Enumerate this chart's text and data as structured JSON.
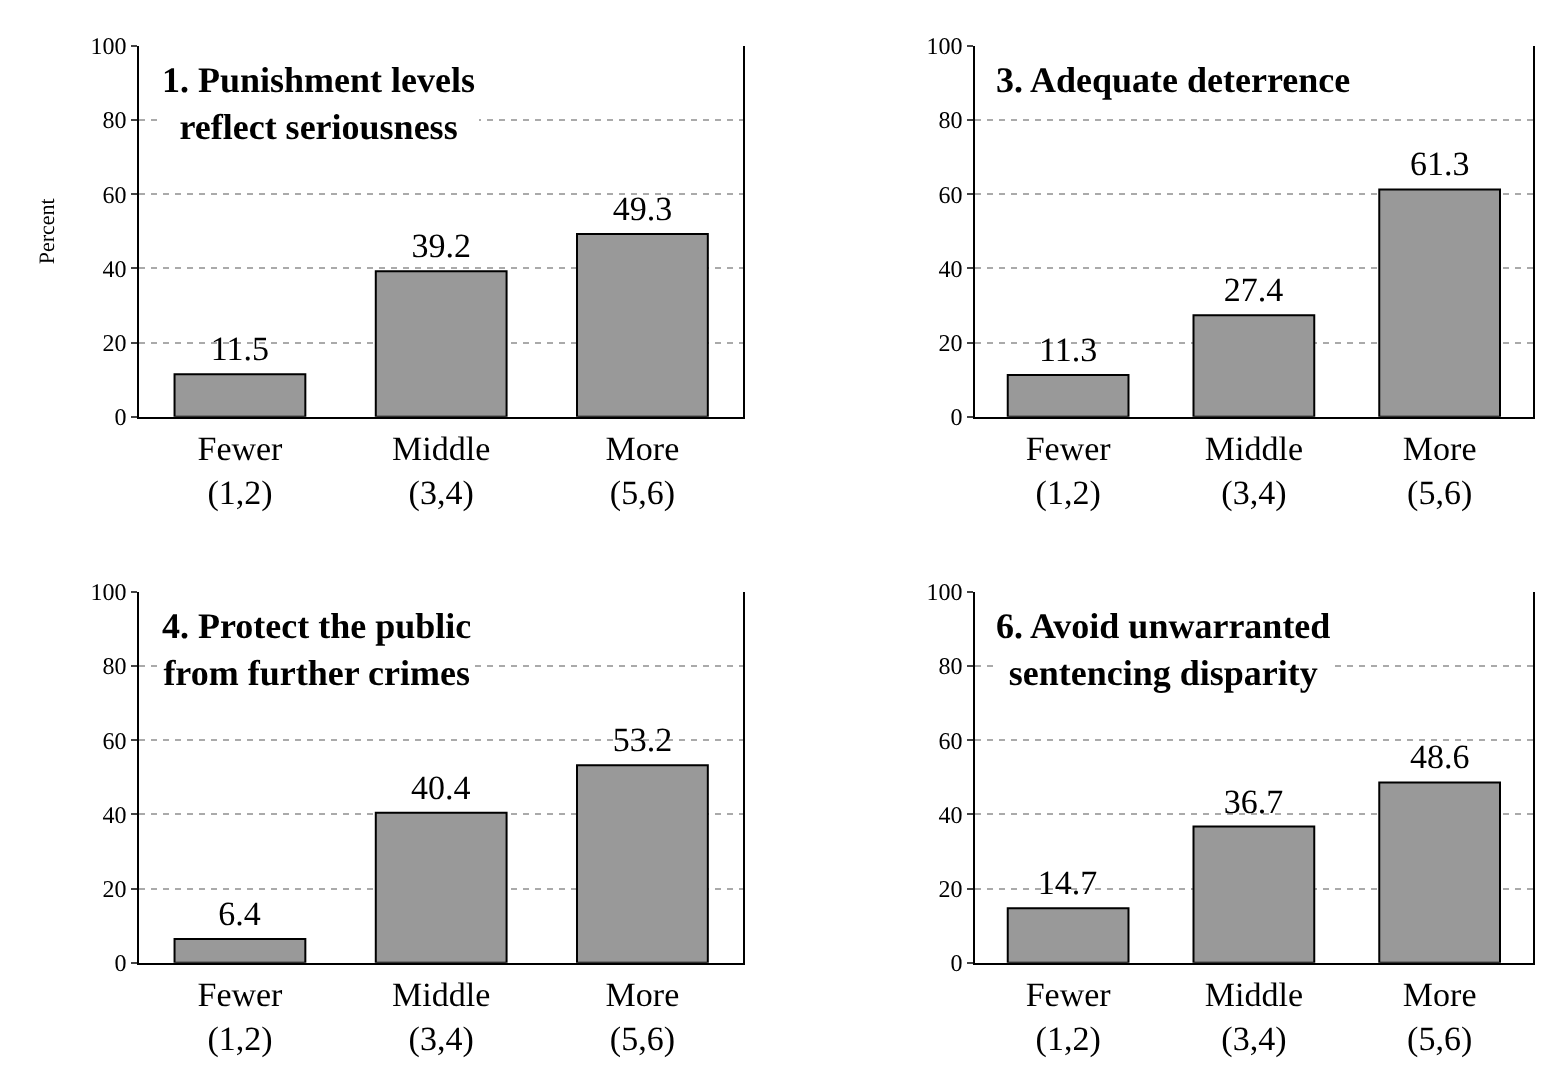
{
  "chart_data": [
    {
      "type": "bar",
      "title": "1. Punishment levels\nreflect seriousness",
      "ylabel": "Percent",
      "categories": [
        "Fewer\n(1,2)",
        "Middle\n(3,4)",
        "More\n(5,6)"
      ],
      "values": [
        11.5,
        39.2,
        49.3
      ],
      "color": "#999999",
      "ylim": [
        0,
        100
      ],
      "yticks": [
        0,
        20,
        40,
        60,
        80,
        100
      ],
      "grid": "y",
      "data_labels": true
    },
    {
      "type": "bar",
      "title": "3. Adequate deterrence",
      "categories": [
        "Fewer\n(1,2)",
        "Middle\n(3,4)",
        "More\n(5,6)"
      ],
      "values": [
        11.3,
        27.4,
        61.3
      ],
      "color": "#999999",
      "ylim": [
        0,
        100
      ],
      "yticks": [
        0,
        20,
        40,
        60,
        80,
        100
      ],
      "grid": "y",
      "data_labels": true
    },
    {
      "type": "bar",
      "title": "4. Protect the public\nfrom further crimes",
      "categories": [
        "Fewer\n(1,2)",
        "Middle\n(3,4)",
        "More\n(5,6)"
      ],
      "values": [
        6.4,
        40.4,
        53.2
      ],
      "color": "#999999",
      "ylim": [
        0,
        100
      ],
      "yticks": [
        0,
        20,
        40,
        60,
        80,
        100
      ],
      "grid": "y",
      "data_labels": true
    },
    {
      "type": "bar",
      "title": "6. Avoid unwarranted\nsentencing disparity",
      "categories": [
        "Fewer\n(1,2)",
        "Middle\n(3,4)",
        "More\n(5,6)"
      ],
      "values": [
        14.7,
        36.7,
        48.6
      ],
      "color": "#999999",
      "ylim": [
        0,
        100
      ],
      "yticks": [
        0,
        20,
        40,
        60,
        80,
        100
      ],
      "grid": "y",
      "data_labels": true
    }
  ]
}
